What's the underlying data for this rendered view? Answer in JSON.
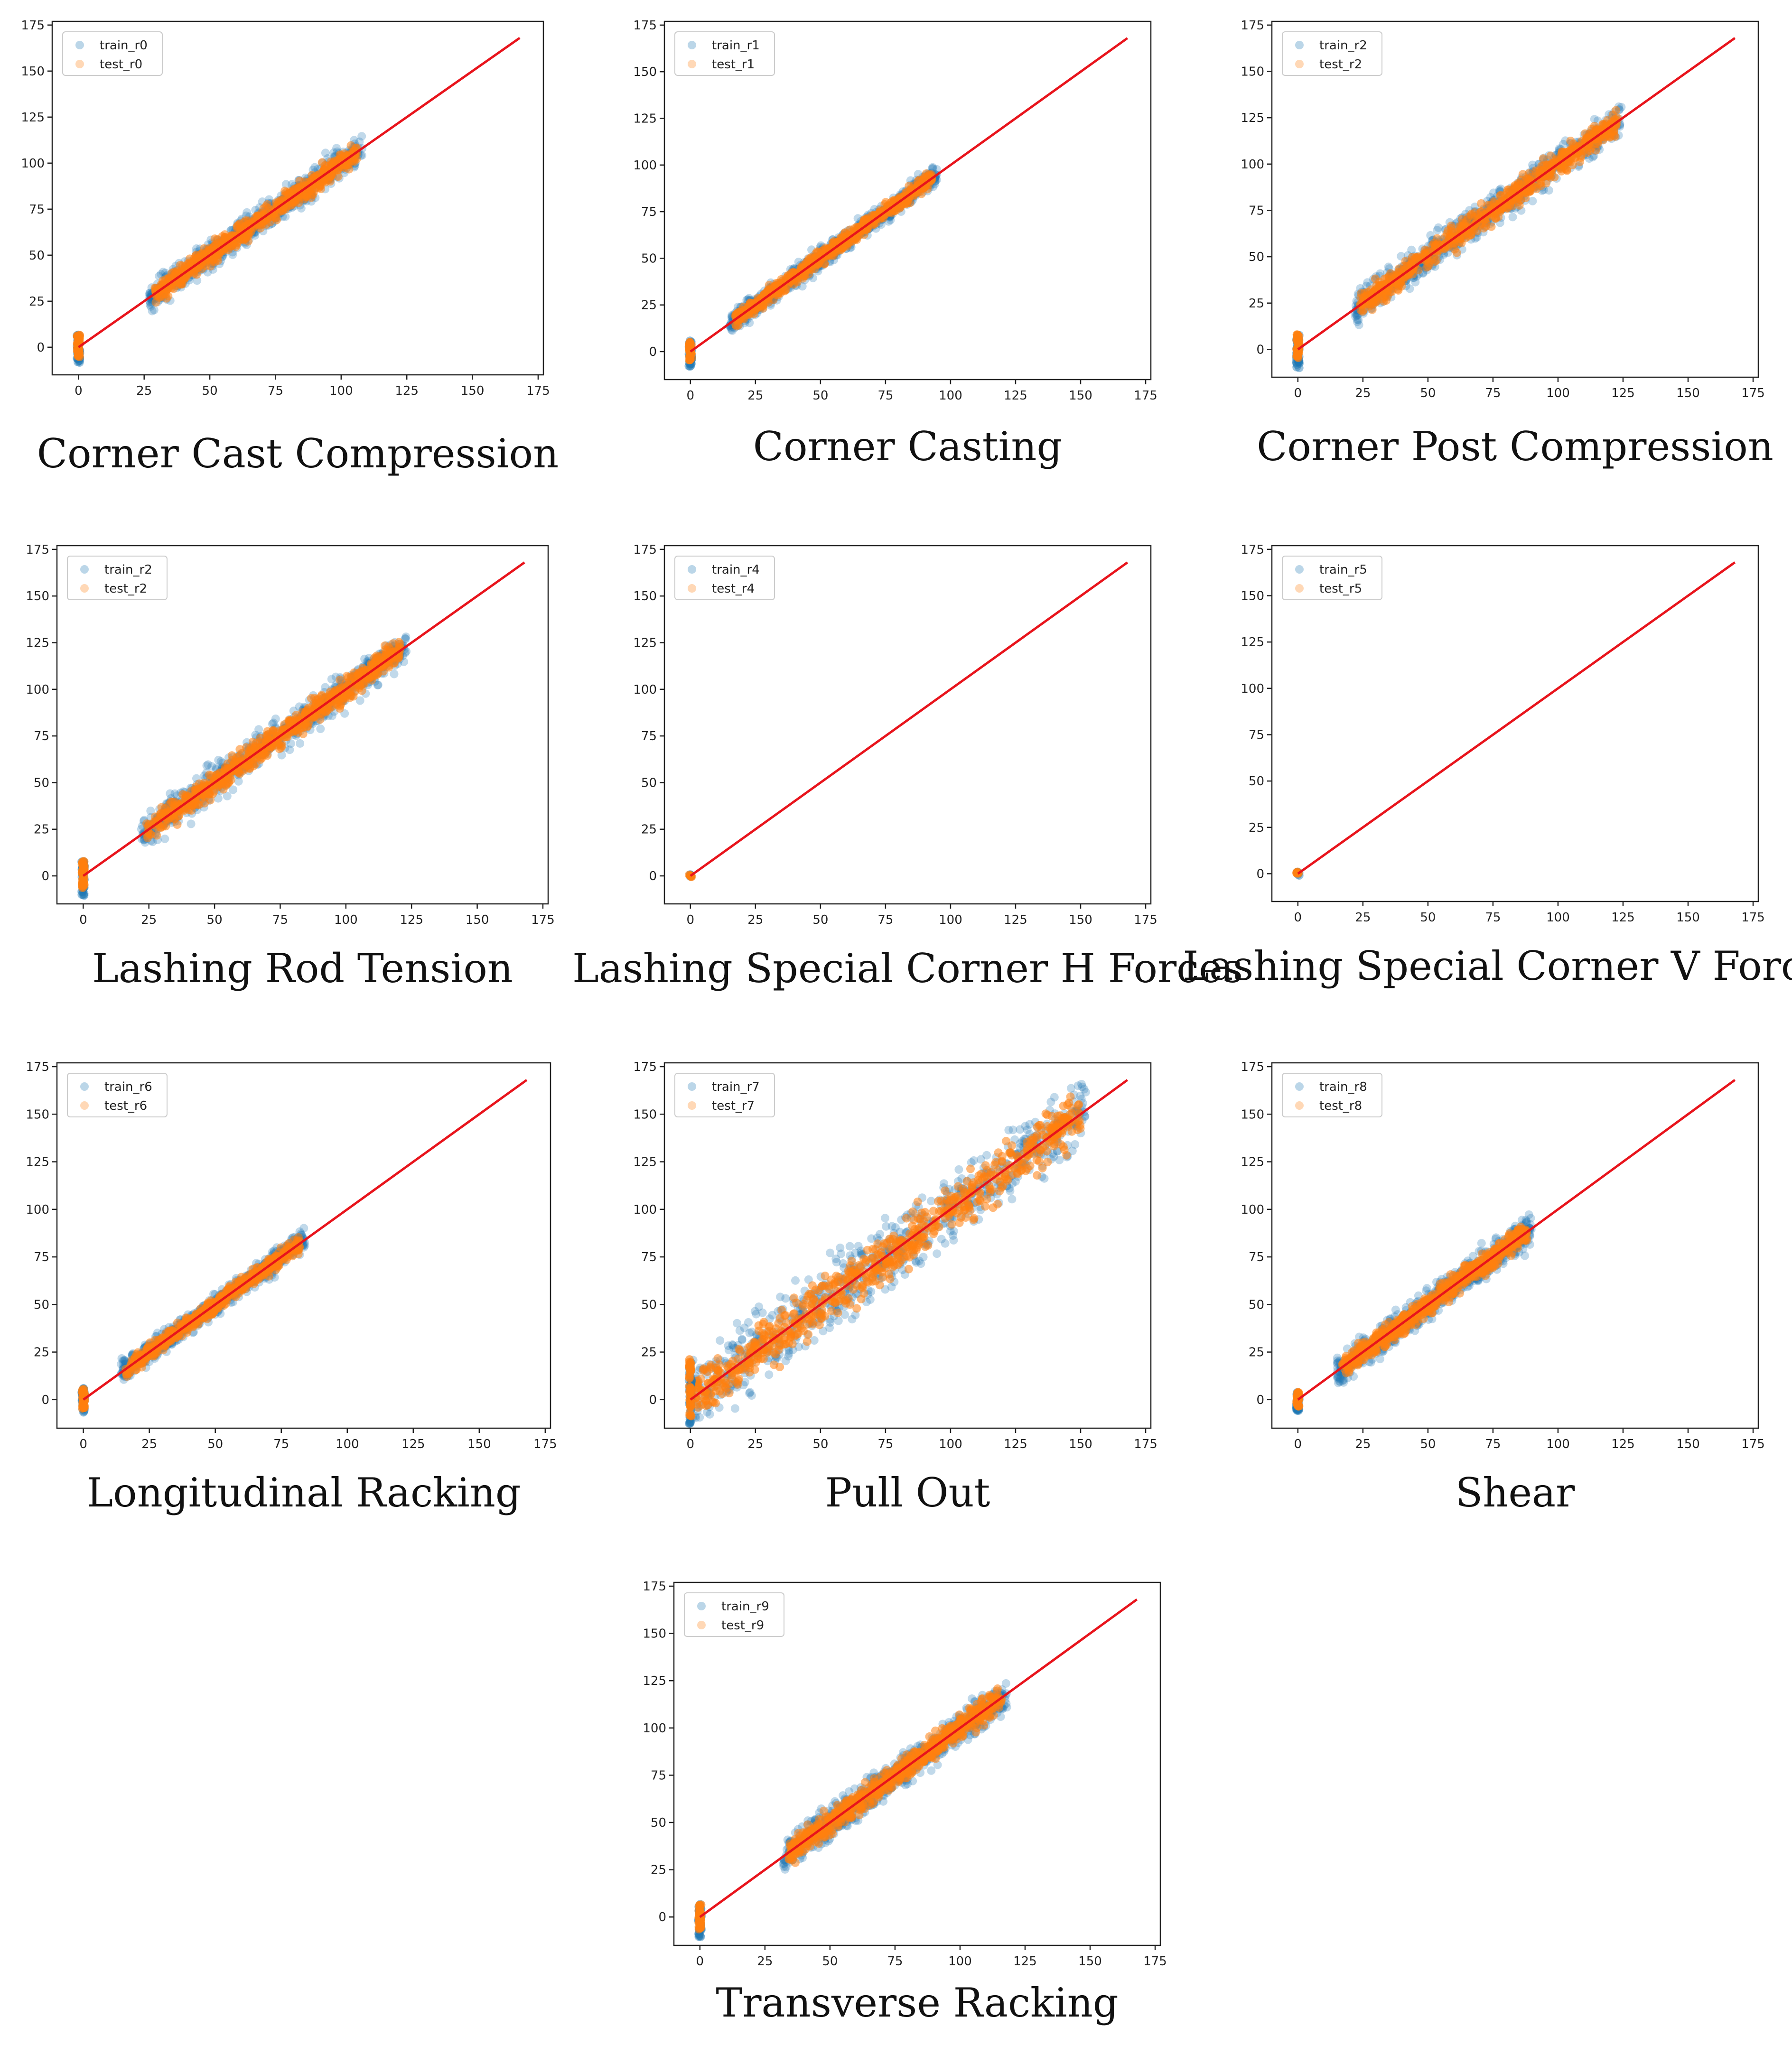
{
  "figure": {
    "colors": {
      "train": "#1f77b4",
      "test": "#ff7f0e",
      "ideal_line": "#e8141c",
      "axes": "#222222",
      "text": "#222222"
    }
  },
  "chart_data": [
    {
      "type": "scatter",
      "caption": "Corner Cast Compression",
      "legend": [
        "train_r0",
        "test_r0"
      ],
      "legend_position": "upper-left",
      "xlim": [
        -10,
        177
      ],
      "ylim": [
        -15,
        177
      ],
      "xticks": [
        "0",
        "25",
        "50",
        "75",
        "100",
        "125",
        "150",
        "175"
      ],
      "yticks": [
        "0",
        "25",
        "50",
        "75",
        "100",
        "125",
        "150",
        "175"
      ],
      "cloud": {
        "x_min": 27,
        "x_max": 108,
        "spread": 7
      },
      "zero_cluster": {
        "y_min": -9,
        "y_max": 7
      },
      "ideal_line": {
        "x": [
          0,
          168
        ],
        "y": [
          0,
          168
        ]
      }
    },
    {
      "type": "scatter",
      "caption": "Corner Casting",
      "legend": [
        "train_r1",
        "test_r1"
      ],
      "legend_position": "upper-left",
      "xlim": [
        -10,
        177
      ],
      "ylim": [
        -15,
        177
      ],
      "xticks": [
        "0",
        "25",
        "50",
        "75",
        "100",
        "125",
        "150",
        "175"
      ],
      "yticks": [
        "0",
        "25",
        "50",
        "75",
        "100",
        "125",
        "150",
        "175"
      ],
      "cloud": {
        "x_min": 15,
        "x_max": 95,
        "spread": 5
      },
      "zero_cluster": {
        "y_min": -8,
        "y_max": 6
      },
      "ideal_line": {
        "x": [
          0,
          168
        ],
        "y": [
          0,
          168
        ]
      }
    },
    {
      "type": "scatter",
      "caption": "Corner Post Compression",
      "legend": [
        "train_r2",
        "test_r2"
      ],
      "legend_position": "upper-left",
      "xlim": [
        -10,
        177
      ],
      "ylim": [
        -15,
        177
      ],
      "xticks": [
        "0",
        "25",
        "50",
        "75",
        "100",
        "125",
        "150",
        "175"
      ],
      "yticks": [
        "0",
        "25",
        "50",
        "75",
        "100",
        "125",
        "150",
        "175"
      ],
      "cloud": {
        "x_min": 22,
        "x_max": 125,
        "spread": 8
      },
      "zero_cluster": {
        "y_min": -10,
        "y_max": 8
      },
      "ideal_line": {
        "x": [
          0,
          168
        ],
        "y": [
          0,
          168
        ]
      }
    },
    {
      "type": "scatter",
      "caption": "Lashing Rod Tension",
      "legend": [
        "train_r2",
        "test_r2"
      ],
      "legend_position": "upper-left",
      "xlim": [
        -10,
        177
      ],
      "ylim": [
        -15,
        177
      ],
      "xticks": [
        "0",
        "25",
        "50",
        "75",
        "100",
        "125",
        "150",
        "175"
      ],
      "yticks": [
        "0",
        "25",
        "50",
        "75",
        "100",
        "125",
        "150",
        "175"
      ],
      "cloud": {
        "x_min": 22,
        "x_max": 123,
        "spread": 8
      },
      "zero_cluster": {
        "y_min": -11,
        "y_max": 8
      },
      "ideal_line": {
        "x": [
          0,
          168
        ],
        "y": [
          0,
          168
        ]
      }
    },
    {
      "type": "scatter",
      "caption": "Lashing Special Corner H Forces",
      "legend": [
        "train_r4",
        "test_r4"
      ],
      "legend_position": "upper-left",
      "xlim": [
        -10,
        177
      ],
      "ylim": [
        -15,
        177
      ],
      "xticks": [
        "0",
        "25",
        "50",
        "75",
        "100",
        "125",
        "150",
        "175"
      ],
      "yticks": [
        "0",
        "25",
        "50",
        "75",
        "100",
        "125",
        "150",
        "175"
      ],
      "cloud": null,
      "zero_cluster": {
        "y_min": -1,
        "y_max": 1
      },
      "ideal_line": {
        "x": [
          0,
          168
        ],
        "y": [
          0,
          168
        ]
      }
    },
    {
      "type": "scatter",
      "caption": "Lashing Special Corner V Forces",
      "legend": [
        "train_r5",
        "test_r5"
      ],
      "legend_position": "upper-left",
      "xlim": [
        -10,
        177
      ],
      "ylim": [
        -15,
        177
      ],
      "xticks": [
        "0",
        "25",
        "50",
        "75",
        "100",
        "125",
        "150",
        "175"
      ],
      "yticks": [
        "0",
        "25",
        "50",
        "75",
        "100",
        "125",
        "150",
        "175"
      ],
      "cloud": null,
      "zero_cluster": {
        "y_min": -1,
        "y_max": 1
      },
      "ideal_line": {
        "x": [
          0,
          168
        ],
        "y": [
          0,
          168
        ]
      }
    },
    {
      "type": "scatter",
      "caption": "Longitudinal Racking",
      "legend": [
        "train_r6",
        "test_r6"
      ],
      "legend_position": "upper-left",
      "xlim": [
        -10,
        177
      ],
      "ylim": [
        -15,
        177
      ],
      "xticks": [
        "0",
        "25",
        "50",
        "75",
        "100",
        "125",
        "150",
        "175"
      ],
      "yticks": [
        "0",
        "25",
        "50",
        "75",
        "100",
        "125",
        "150",
        "175"
      ],
      "cloud": {
        "x_min": 14,
        "x_max": 84,
        "spread": 5
      },
      "zero_cluster": {
        "y_min": -8,
        "y_max": 6
      },
      "ideal_line": {
        "x": [
          0,
          168
        ],
        "y": [
          0,
          168
        ]
      }
    },
    {
      "type": "scatter",
      "caption": "Pull Out",
      "legend": [
        "train_r7",
        "test_r7"
      ],
      "legend_position": "upper-left",
      "xlim": [
        -10,
        177
      ],
      "ylim": [
        -15,
        177
      ],
      "xticks": [
        "0",
        "25",
        "50",
        "75",
        "100",
        "125",
        "150",
        "175"
      ],
      "yticks": [
        "0",
        "25",
        "50",
        "75",
        "100",
        "125",
        "150",
        "175"
      ],
      "cloud": {
        "x_min": 0,
        "x_max": 152,
        "spread": 16
      },
      "zero_cluster": {
        "y_min": -15,
        "y_max": 22
      },
      "ideal_line": {
        "x": [
          0,
          168
        ],
        "y": [
          0,
          168
        ]
      }
    },
    {
      "type": "scatter",
      "caption": "Shear",
      "legend": [
        "train_r8",
        "test_r8"
      ],
      "legend_position": "upper-left",
      "xlim": [
        -10,
        177
      ],
      "ylim": [
        -15,
        177
      ],
      "xticks": [
        "0",
        "25",
        "50",
        "75",
        "100",
        "125",
        "150",
        "175"
      ],
      "yticks": [
        "0",
        "25",
        "50",
        "75",
        "100",
        "125",
        "150",
        "175"
      ],
      "cloud": {
        "x_min": 15,
        "x_max": 90,
        "spread": 7
      },
      "zero_cluster": {
        "y_min": -6,
        "y_max": 4
      },
      "ideal_line": {
        "x": [
          0,
          168
        ],
        "y": [
          0,
          168
        ]
      }
    },
    {
      "type": "scatter",
      "caption": "Transverse Racking",
      "legend": [
        "train_r9",
        "test_r9"
      ],
      "legend_position": "upper-left",
      "xlim": [
        -10,
        177
      ],
      "ylim": [
        -15,
        177
      ],
      "xticks": [
        "0",
        "25",
        "50",
        "75",
        "100",
        "125",
        "150",
        "175"
      ],
      "yticks": [
        "0",
        "25",
        "50",
        "75",
        "100",
        "125",
        "150",
        "175"
      ],
      "cloud": {
        "x_min": 32,
        "x_max": 118,
        "spread": 8
      },
      "zero_cluster": {
        "y_min": -11,
        "y_max": 7
      },
      "ideal_line": {
        "x": [
          0,
          168
        ],
        "y": [
          0,
          168
        ]
      }
    }
  ]
}
